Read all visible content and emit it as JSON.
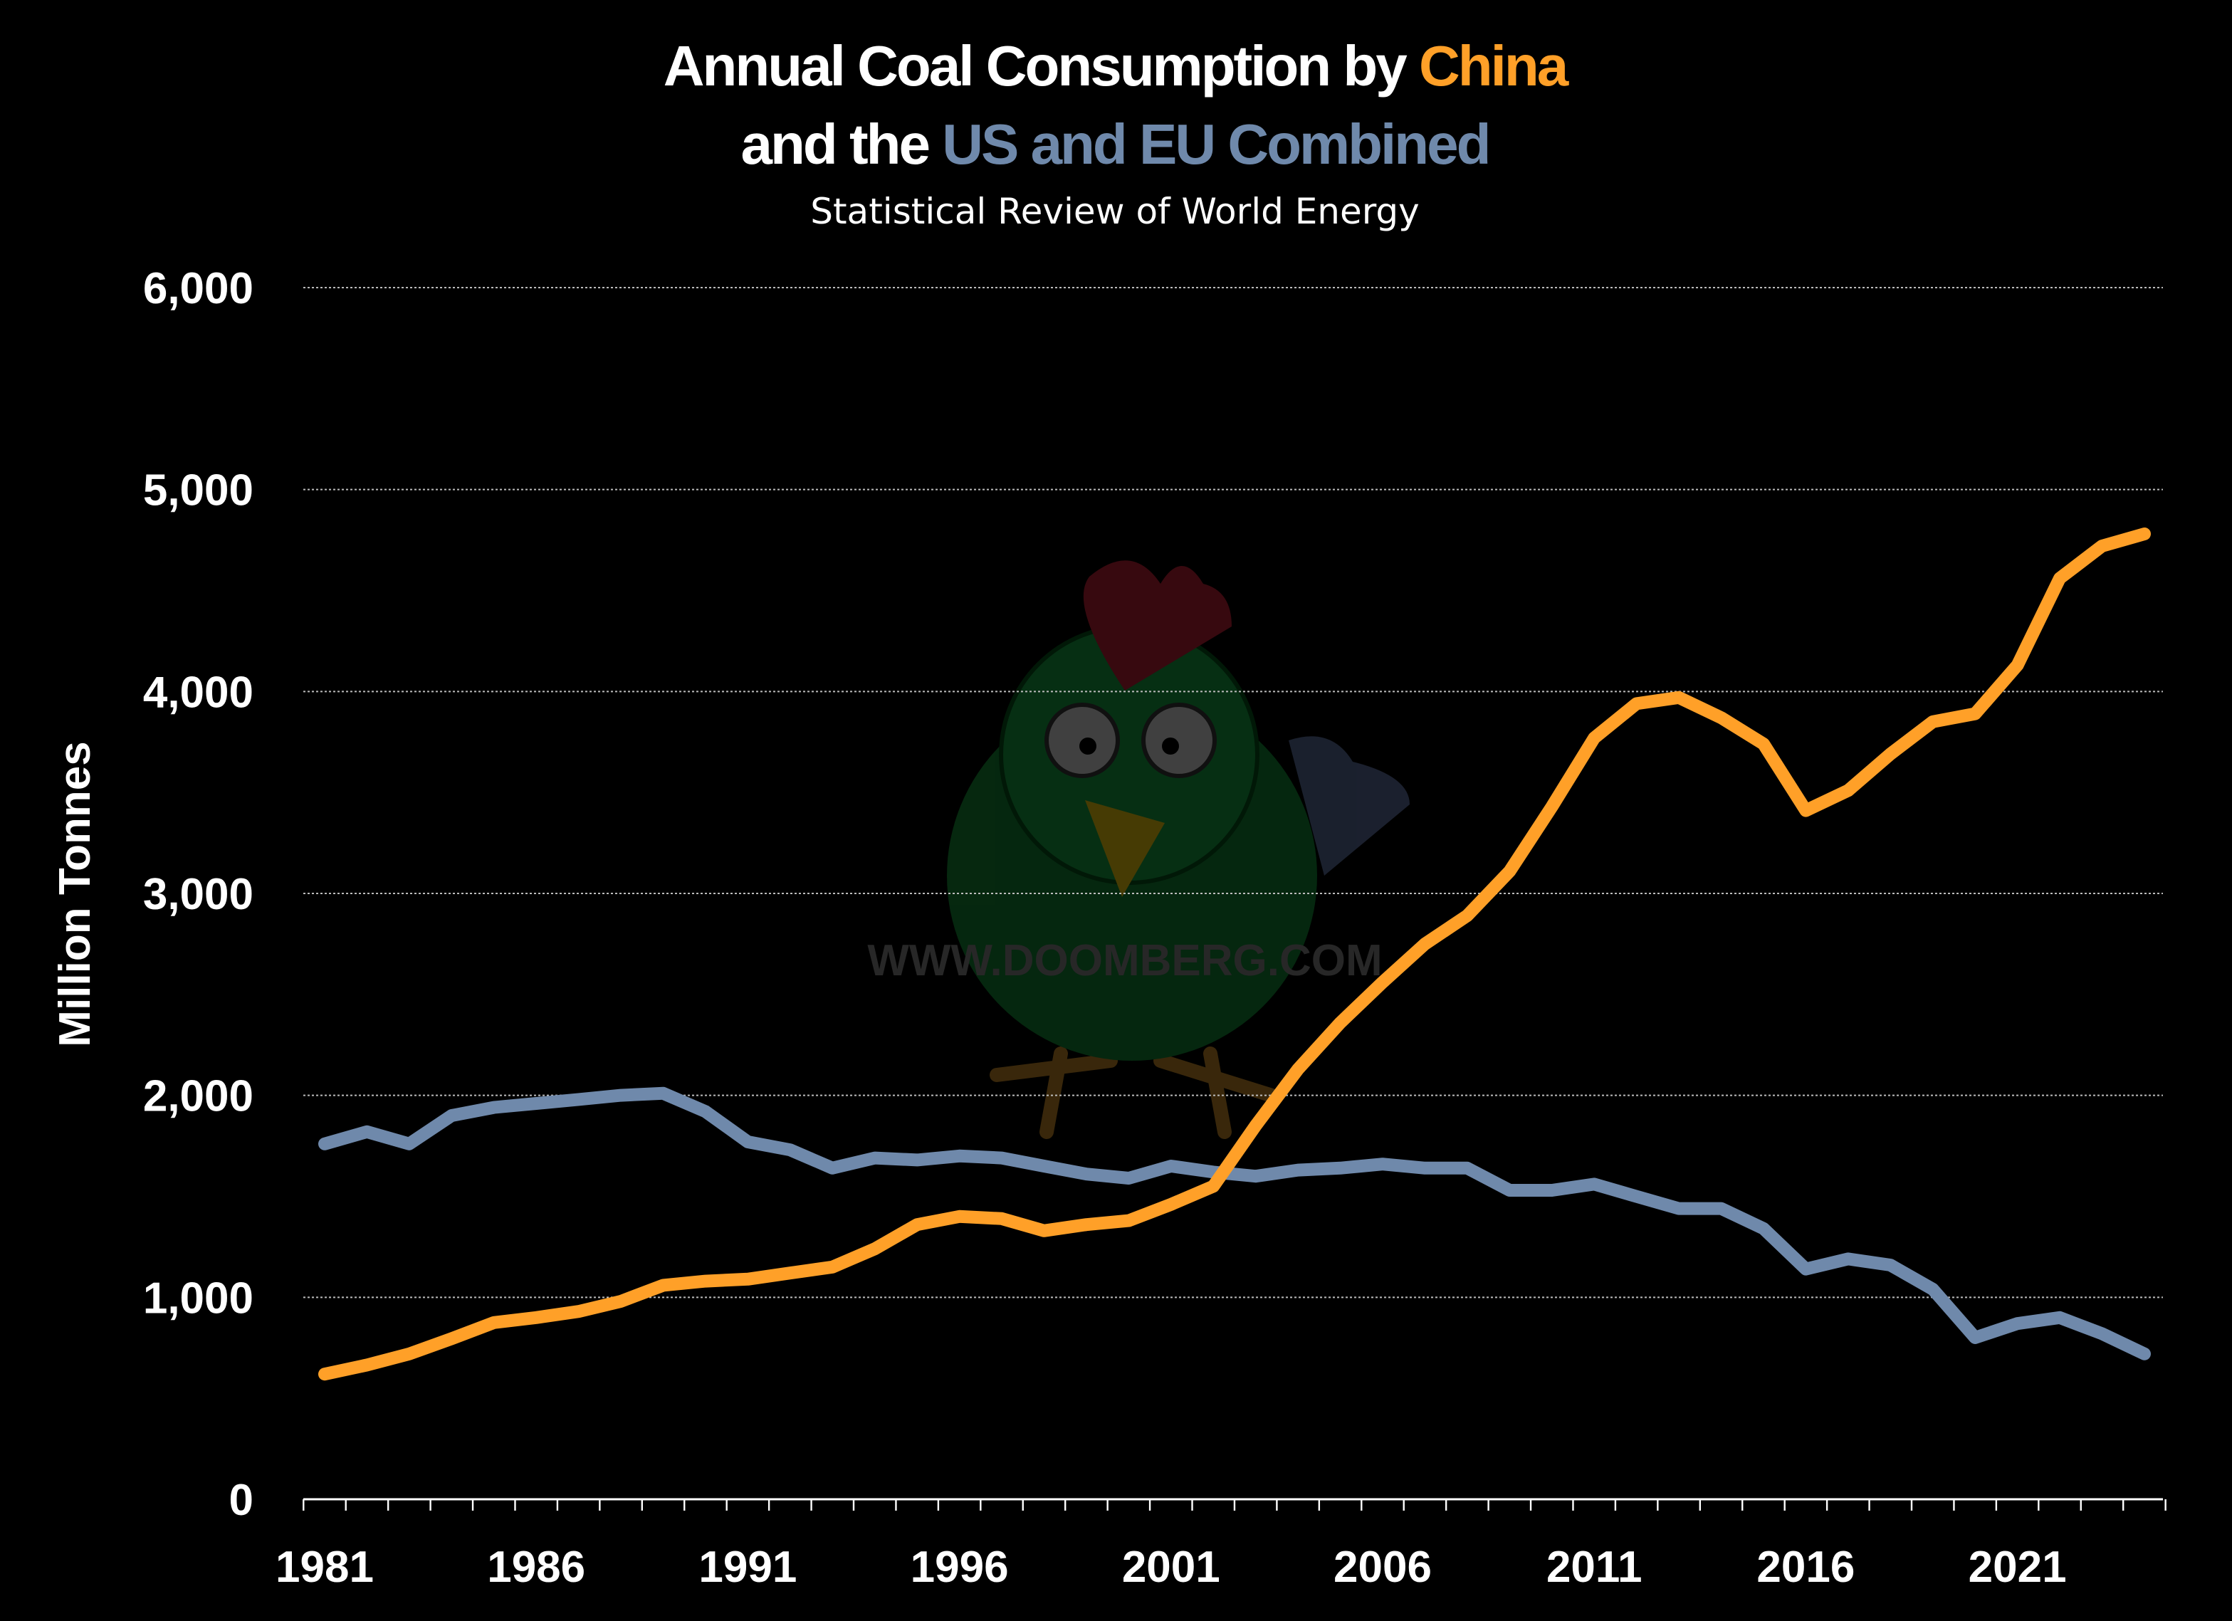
{
  "chart_data": {
    "type": "line",
    "title_parts": [
      "Annual Coal Consumption by ",
      "China",
      "and the ",
      "US and EU Combined"
    ],
    "subtitle": "Statistical Review of World Energy",
    "xlabel": "",
    "ylabel": "Million Tonnes",
    "ylim": [
      0,
      6000
    ],
    "xlim": [
      1981,
      2024
    ],
    "yticks": [
      0,
      1000,
      2000,
      3000,
      4000,
      5000,
      6000
    ],
    "ytick_labels": [
      "0",
      "1,000",
      "2,000",
      "3,000",
      "4,000",
      "5,000",
      "6,000"
    ],
    "xtick_labels": [
      "1981",
      "1986",
      "1991",
      "1996",
      "2001",
      "2006",
      "2011",
      "2016",
      "2021"
    ],
    "grid": "horizontal dotted",
    "legend": "none (series named in title colors)",
    "x": [
      1981,
      1982,
      1983,
      1984,
      1985,
      1986,
      1987,
      1988,
      1989,
      1990,
      1991,
      1992,
      1993,
      1994,
      1995,
      1996,
      1997,
      1998,
      1999,
      2000,
      2001,
      2002,
      2003,
      2004,
      2005,
      2006,
      2007,
      2008,
      2009,
      2010,
      2011,
      2012,
      2013,
      2014,
      2015,
      2016,
      2017,
      2018,
      2019,
      2020,
      2021,
      2022,
      2023,
      2024
    ],
    "series": [
      {
        "name": "China",
        "color": "#FFA028",
        "values": [
          620,
          665,
          720,
          795,
          875,
          900,
          930,
          980,
          1060,
          1080,
          1090,
          1120,
          1150,
          1240,
          1360,
          1400,
          1390,
          1330,
          1360,
          1380,
          1460,
          1550,
          1850,
          2130,
          2360,
          2560,
          2750,
          2890,
          3110,
          3430,
          3770,
          3940,
          3970,
          3870,
          3740,
          3410,
          3510,
          3690,
          3850,
          3890,
          4130,
          4560,
          4720,
          4780
        ]
      },
      {
        "name": "US and EU Combined",
        "color": "#6F89AB",
        "values": [
          1760,
          1820,
          1760,
          1900,
          1940,
          1960,
          1980,
          2000,
          2010,
          1920,
          1770,
          1730,
          1640,
          1690,
          1680,
          1700,
          1690,
          1650,
          1610,
          1590,
          1650,
          1620,
          1600,
          1630,
          1640,
          1660,
          1640,
          1640,
          1530,
          1530,
          1560,
          1500,
          1440,
          1440,
          1340,
          1140,
          1190,
          1160,
          1040,
          800,
          870,
          900,
          820,
          720
        ]
      }
    ],
    "watermark": "WWW.DOOMBERG.COM"
  },
  "colors": {
    "background": "#000000",
    "title": "#FFFFFF",
    "grid": "#BBBBBB"
  }
}
